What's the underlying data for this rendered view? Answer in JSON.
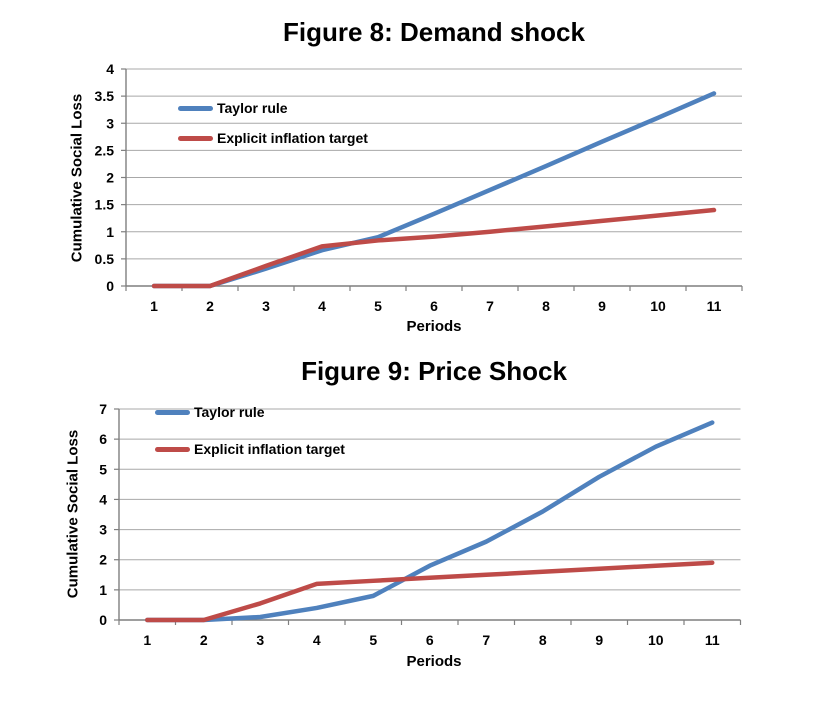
{
  "chart_data": [
    {
      "type": "line",
      "title": "Figure 8: Demand shock",
      "xlabel": "Periods",
      "ylabel": "Cumulative Social Loss",
      "categories": [
        "1",
        "2",
        "3",
        "4",
        "5",
        "6",
        "7",
        "8",
        "9",
        "10",
        "11"
      ],
      "x": [
        1,
        2,
        3,
        4,
        5,
        6,
        7,
        8,
        9,
        10,
        11
      ],
      "ylim": [
        0,
        4
      ],
      "yticks": [
        "0",
        "0.5",
        "1",
        "1.5",
        "2",
        "2.5",
        "3",
        "3.5",
        "4"
      ],
      "grid": true,
      "legend_position": "inside-top-left",
      "gridline_color": "#A8A8A8",
      "axis_color": "#7F7F7F",
      "series": [
        {
          "name": "Taylor rule",
          "color": "#4F81BD",
          "values": [
            0,
            0,
            0.32,
            0.66,
            0.9,
            1.33,
            1.77,
            2.21,
            2.66,
            3.1,
            3.55
          ]
        },
        {
          "name": "Explicit inflation target",
          "color": "#BE4B48",
          "values": [
            0,
            0,
            0.37,
            0.73,
            0.84,
            0.91,
            1.0,
            1.1,
            1.2,
            1.3,
            1.4
          ]
        }
      ]
    },
    {
      "type": "line",
      "title": "Figure 9: Price Shock",
      "xlabel": "Periods",
      "ylabel": "Cumulative Social Loss",
      "categories": [
        "1",
        "2",
        "3",
        "4",
        "5",
        "6",
        "7",
        "8",
        "9",
        "10",
        "11"
      ],
      "x": [
        1,
        2,
        3,
        4,
        5,
        6,
        7,
        8,
        9,
        10,
        11
      ],
      "ylim": [
        0,
        7
      ],
      "yticks": [
        "0",
        "1",
        "2",
        "3",
        "4",
        "5",
        "6",
        "7"
      ],
      "grid": true,
      "legend_position": "inside-top-left",
      "gridline_color": "#A8A8A8",
      "axis_color": "#7F7F7F",
      "series": [
        {
          "name": "Taylor rule",
          "color": "#4F81BD",
          "values": [
            0,
            0,
            0.1,
            0.4,
            0.8,
            1.8,
            2.6,
            3.6,
            4.75,
            5.75,
            6.55
          ]
        },
        {
          "name": "Explicit inflation target",
          "color": "#BE4B48",
          "values": [
            0,
            0,
            0.55,
            1.2,
            1.3,
            1.4,
            1.5,
            1.6,
            1.7,
            1.8,
            1.9
          ]
        }
      ]
    }
  ]
}
